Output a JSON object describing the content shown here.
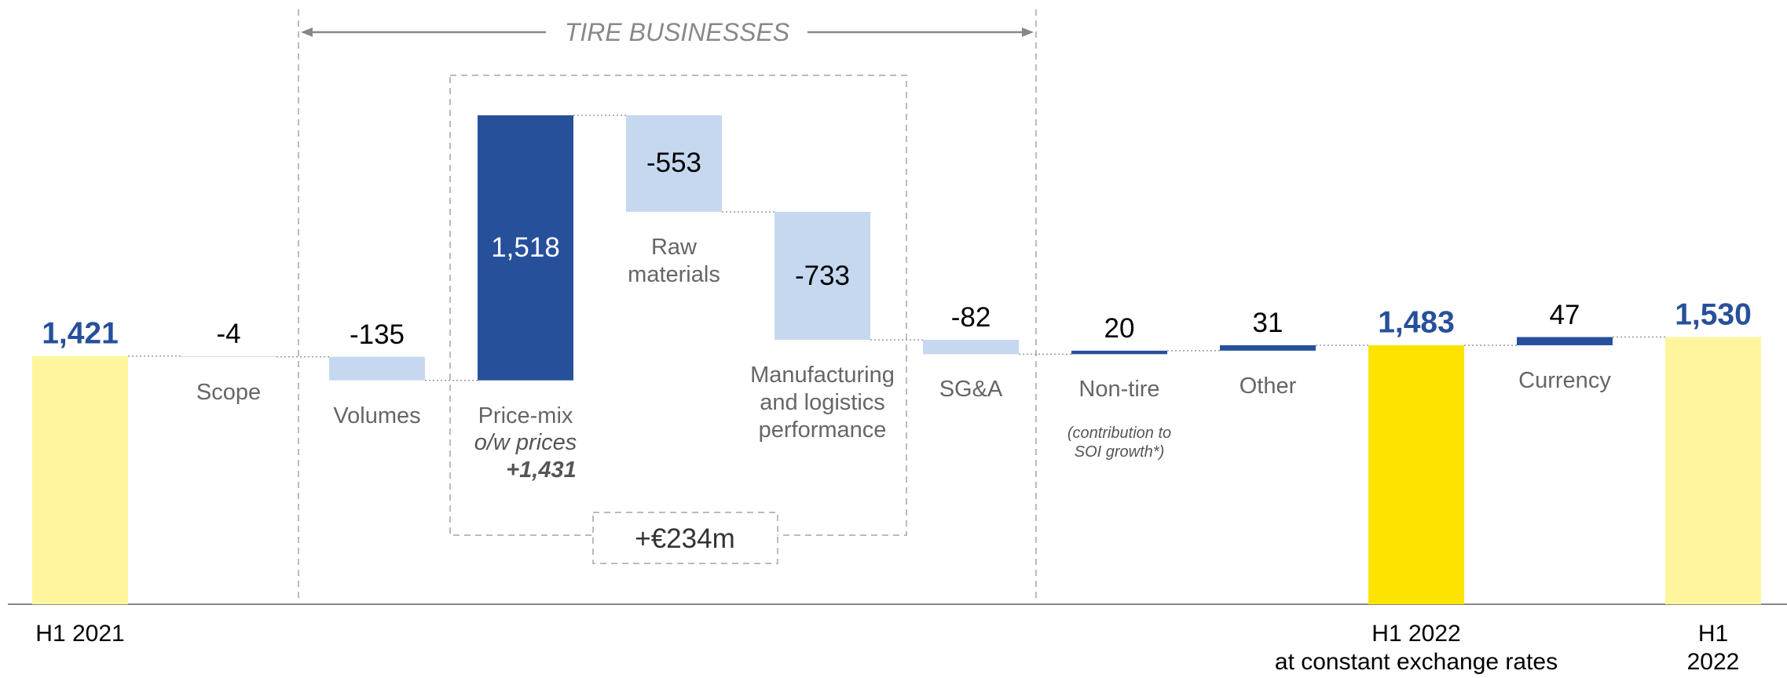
{
  "chart_data": {
    "type": "waterfall",
    "categories": [
      "H1 2021",
      "Scope",
      "Volumes",
      "Price-mix",
      "Raw\nmaterials",
      "Manufacturing\nand logistics\nperformance",
      "SG&A",
      "Non-tire",
      "Other",
      "H1 2022\nat constant exchange rates",
      "Currency",
      "H1 2022"
    ],
    "values": [
      1421,
      -4,
      -135,
      1518,
      -553,
      -733,
      -82,
      20,
      31,
      1483,
      47,
      1530
    ],
    "value_labels": [
      "1,421",
      "-4",
      "-135",
      "1,518",
      "-553",
      "-733",
      "-82",
      "20",
      "31",
      "1,483",
      "47",
      "1,530"
    ],
    "is_total": [
      true,
      false,
      false,
      false,
      false,
      false,
      false,
      false,
      false,
      true,
      false,
      true
    ],
    "colors": [
      "#fff59d",
      "#c5d8f0",
      "#c5d8f0",
      "#27509b",
      "#c5d8f0",
      "#c5d8f0",
      "#c5d8f0",
      "#27509b",
      "#27509b",
      "#fde400",
      "#27509b",
      "#fff59d"
    ],
    "ylim": [
      0,
      3460
    ],
    "section_title": "TIRE BUSINESSES",
    "bracket_label": "+€234m",
    "price_mix_note": [
      "o/w prices",
      "+1,431"
    ],
    "non_tire_note": "(contribution to\nSOI growth*)"
  }
}
